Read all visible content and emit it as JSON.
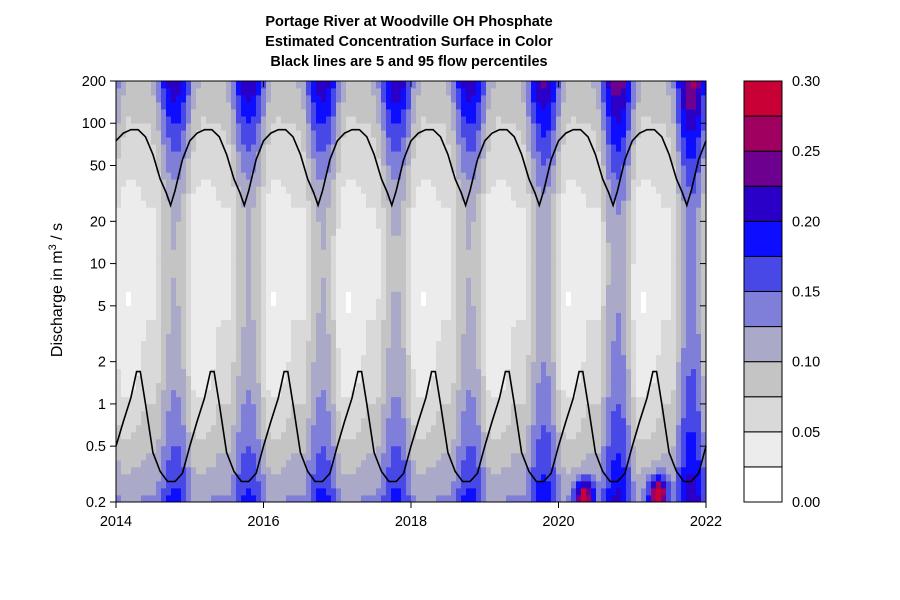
{
  "chart_data": {
    "type": "heatmap",
    "title_lines": [
      "Portage River at Woodville OH    Phosphate",
      "Estimated Concentration Surface in Color",
      "Black lines are 5 and 95 flow percentiles"
    ],
    "ylabel": {
      "prefix": "Discharge in m",
      "superscript": "3",
      "suffix": " / s"
    },
    "x_ticks": [
      {
        "value": 2014,
        "label": "2014"
      },
      {
        "value": 2016,
        "label": "2016"
      },
      {
        "value": 2018,
        "label": "2018"
      },
      {
        "value": 2020,
        "label": "2020"
      },
      {
        "value": 2022,
        "label": "2022"
      }
    ],
    "y_ticks": [
      {
        "value": 0.2,
        "label": "0.2"
      },
      {
        "value": 0.5,
        "label": "0.5"
      },
      {
        "value": 1,
        "label": "1"
      },
      {
        "value": 2,
        "label": "2"
      },
      {
        "value": 5,
        "label": "5"
      },
      {
        "value": 10,
        "label": "10"
      },
      {
        "value": 20,
        "label": "20"
      },
      {
        "value": 50,
        "label": "50"
      },
      {
        "value": 100,
        "label": "100"
      },
      {
        "value": 200,
        "label": "200"
      }
    ],
    "xlim": [
      2014,
      2022
    ],
    "ylim": [
      0.2,
      200
    ],
    "y_scale": "log",
    "colorbar": {
      "levels": [
        0.0,
        0.025,
        0.05,
        0.075,
        0.1,
        0.125,
        0.15,
        0.175,
        0.2,
        0.225,
        0.25,
        0.275,
        0.3
      ],
      "colors": [
        "#ffffff",
        "#ececec",
        "#d9d9d9",
        "#c4c4c4",
        "#aaaac8",
        "#7f7fd9",
        "#4848e6",
        "#0d0dff",
        "#2a00c8",
        "#6e0090",
        "#a00060",
        "#c80035",
        "#ff0000"
      ],
      "tick_labels": [
        {
          "value": 0.0,
          "label": "0.00"
        },
        {
          "value": 0.05,
          "label": "0.05"
        },
        {
          "value": 0.1,
          "label": "0.10"
        },
        {
          "value": 0.15,
          "label": "0.15"
        },
        {
          "value": 0.2,
          "label": "0.20"
        },
        {
          "value": 0.25,
          "label": "0.25"
        },
        {
          "value": 0.3,
          "label": "0.30"
        }
      ]
    },
    "surface": {
      "description_of_pattern": "seasonal: high concentration (blue) at high flow in late year, low (white/grey) at mid flows in spring",
      "hotspots": [
        {
          "x": 2020.35,
          "y": 0.22,
          "value": 0.27
        },
        {
          "x": 2021.35,
          "y": 0.23,
          "value": 0.29
        }
      ]
    },
    "series": [
      {
        "percentile": 95,
        "x": [
          2014.0,
          2014.1,
          2014.2,
          2014.3,
          2014.4,
          2014.5,
          2014.6,
          2014.68,
          2014.74,
          2014.8,
          2014.9,
          2015.0,
          2015.1,
          2015.2,
          2015.3,
          2015.4,
          2015.5,
          2015.6,
          2015.68,
          2015.74,
          2015.8,
          2015.9,
          2016.0,
          2016.1,
          2016.2,
          2016.3,
          2016.4,
          2016.5,
          2016.6,
          2016.68,
          2016.74,
          2016.8,
          2016.9,
          2017.0,
          2017.1,
          2017.2,
          2017.3,
          2017.4,
          2017.5,
          2017.6,
          2017.68,
          2017.74,
          2017.8,
          2017.9,
          2018.0,
          2018.1,
          2018.2,
          2018.3,
          2018.4,
          2018.5,
          2018.6,
          2018.68,
          2018.74,
          2018.8,
          2018.9,
          2019.0,
          2019.1,
          2019.2,
          2019.3,
          2019.4,
          2019.5,
          2019.6,
          2019.68,
          2019.74,
          2019.8,
          2019.9,
          2020.0,
          2020.1,
          2020.2,
          2020.3,
          2020.4,
          2020.5,
          2020.6,
          2020.68,
          2020.74,
          2020.8,
          2020.9,
          2021.0,
          2021.1,
          2021.2,
          2021.3,
          2021.4,
          2021.5,
          2021.6,
          2021.68,
          2021.74,
          2021.8,
          2021.9,
          2022.0
        ],
        "y": [
          75,
          85,
          90,
          90,
          80,
          60,
          40,
          32,
          26,
          33,
          55,
          75,
          85,
          90,
          90,
          80,
          60,
          40,
          32,
          26,
          33,
          55,
          75,
          85,
          90,
          90,
          80,
          60,
          40,
          32,
          26,
          33,
          55,
          75,
          85,
          90,
          90,
          80,
          60,
          40,
          32,
          26,
          33,
          55,
          75,
          85,
          90,
          90,
          80,
          60,
          40,
          32,
          26,
          33,
          55,
          75,
          85,
          90,
          90,
          80,
          60,
          40,
          32,
          26,
          33,
          55,
          75,
          85,
          90,
          90,
          80,
          60,
          40,
          32,
          26,
          33,
          55,
          75,
          85,
          90,
          90,
          80,
          60,
          40,
          32,
          26,
          33,
          55,
          75
        ]
      },
      {
        "percentile": 5,
        "x": [
          2014.0,
          2014.1,
          2014.2,
          2014.28,
          2014.33,
          2014.4,
          2014.5,
          2014.6,
          2014.7,
          2014.8,
          2014.9,
          2015.0,
          2015.1,
          2015.2,
          2015.28,
          2015.33,
          2015.4,
          2015.5,
          2015.6,
          2015.7,
          2015.8,
          2015.9,
          2016.0,
          2016.1,
          2016.2,
          2016.28,
          2016.33,
          2016.4,
          2016.5,
          2016.6,
          2016.7,
          2016.8,
          2016.9,
          2017.0,
          2017.1,
          2017.2,
          2017.28,
          2017.33,
          2017.4,
          2017.5,
          2017.6,
          2017.7,
          2017.8,
          2017.9,
          2018.0,
          2018.1,
          2018.2,
          2018.28,
          2018.33,
          2018.4,
          2018.5,
          2018.6,
          2018.7,
          2018.8,
          2018.9,
          2019.0,
          2019.1,
          2019.2,
          2019.28,
          2019.33,
          2019.4,
          2019.5,
          2019.6,
          2019.7,
          2019.8,
          2019.9,
          2020.0,
          2020.1,
          2020.2,
          2020.28,
          2020.33,
          2020.4,
          2020.5,
          2020.6,
          2020.7,
          2020.8,
          2020.9,
          2021.0,
          2021.1,
          2021.2,
          2021.28,
          2021.33,
          2021.4,
          2021.5,
          2021.6,
          2021.7,
          2021.8,
          2021.9,
          2022.0
        ],
        "y": [
          0.5,
          0.75,
          1.1,
          1.7,
          1.7,
          1.0,
          0.45,
          0.33,
          0.28,
          0.28,
          0.32,
          0.5,
          0.75,
          1.1,
          1.7,
          1.7,
          1.0,
          0.45,
          0.33,
          0.28,
          0.28,
          0.32,
          0.5,
          0.75,
          1.1,
          1.7,
          1.7,
          1.0,
          0.45,
          0.33,
          0.28,
          0.28,
          0.32,
          0.5,
          0.75,
          1.1,
          1.7,
          1.7,
          1.0,
          0.45,
          0.33,
          0.28,
          0.28,
          0.32,
          0.5,
          0.75,
          1.1,
          1.7,
          1.7,
          1.0,
          0.45,
          0.33,
          0.28,
          0.28,
          0.32,
          0.5,
          0.75,
          1.1,
          1.7,
          1.7,
          1.0,
          0.45,
          0.33,
          0.28,
          0.28,
          0.32,
          0.5,
          0.75,
          1.1,
          1.7,
          1.7,
          1.0,
          0.45,
          0.33,
          0.28,
          0.28,
          0.32,
          0.5,
          0.75,
          1.1,
          1.7,
          1.7,
          1.0,
          0.45,
          0.33,
          0.28,
          0.28,
          0.32,
          0.5
        ]
      }
    ]
  }
}
